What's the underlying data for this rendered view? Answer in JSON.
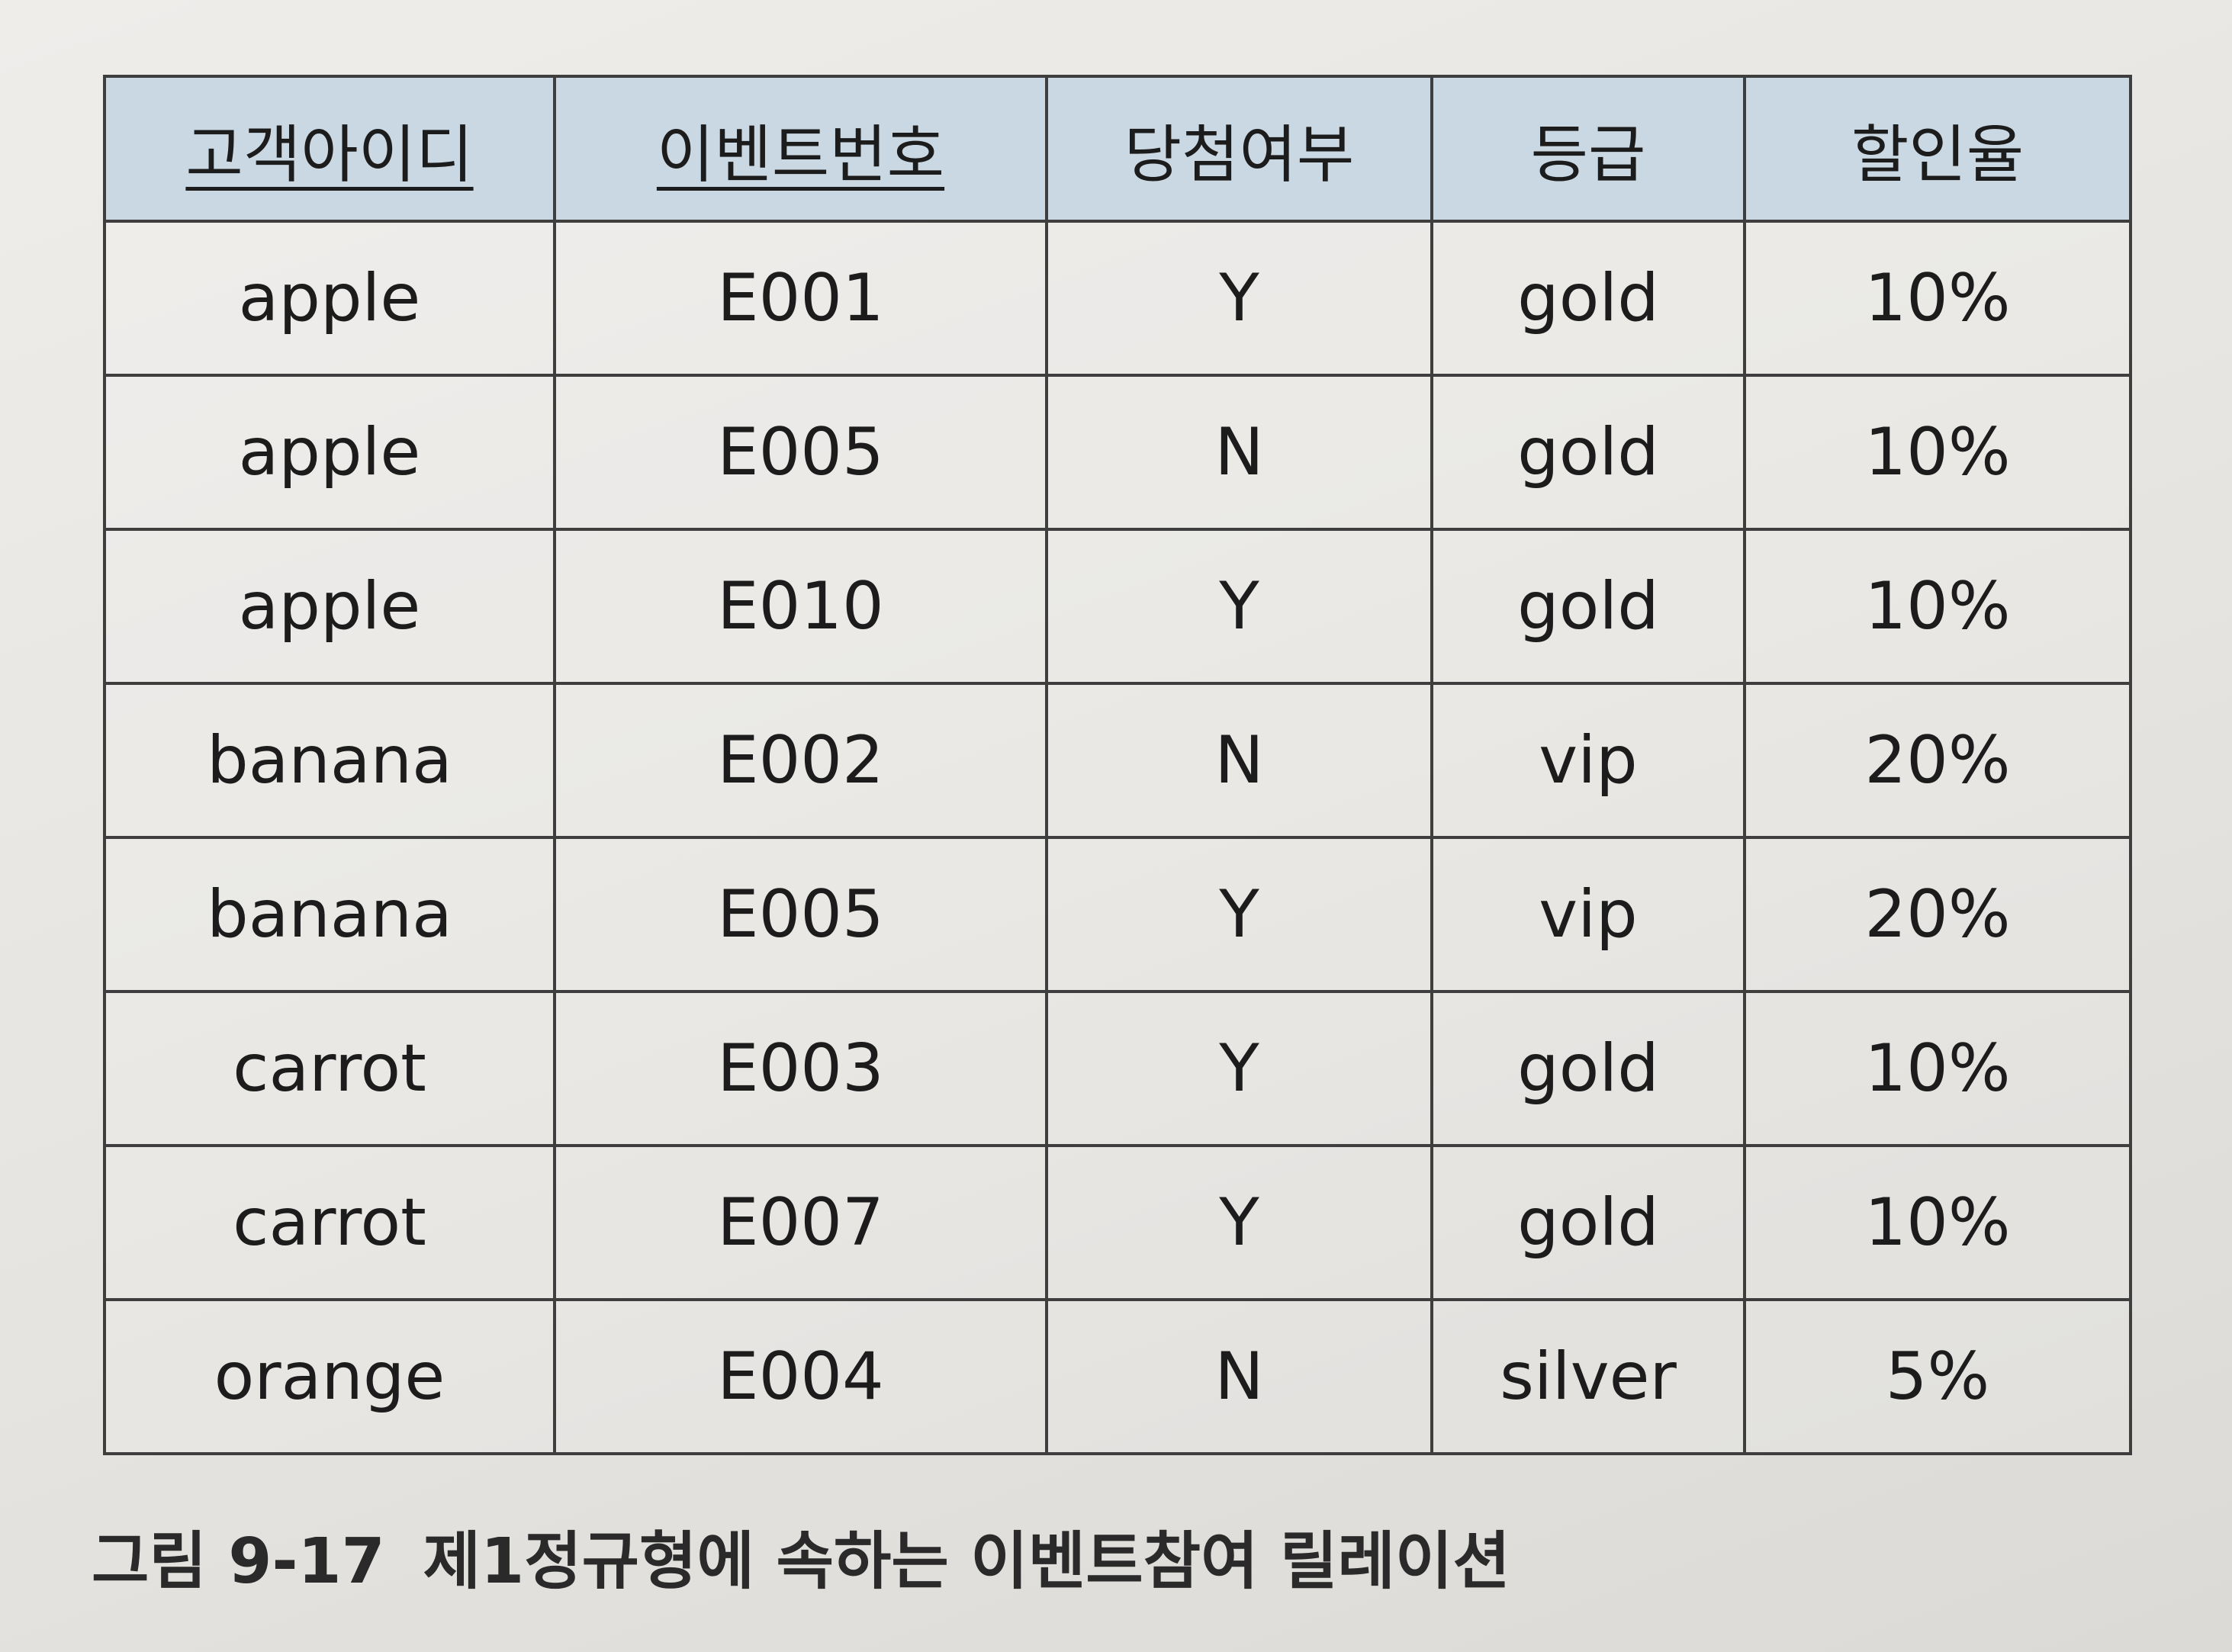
{
  "table": {
    "headers": [
      "고객아이디",
      "이벤트번호",
      "당첨여부",
      "등급",
      "할인율"
    ],
    "rows": [
      [
        "apple",
        "E001",
        "Y",
        "gold",
        "10%"
      ],
      [
        "apple",
        "E005",
        "N",
        "gold",
        "10%"
      ],
      [
        "apple",
        "E010",
        "Y",
        "gold",
        "10%"
      ],
      [
        "banana",
        "E002",
        "N",
        "vip",
        "20%"
      ],
      [
        "banana",
        "E005",
        "Y",
        "vip",
        "20%"
      ],
      [
        "carrot",
        "E003",
        "Y",
        "gold",
        "10%"
      ],
      [
        "carrot",
        "E007",
        "Y",
        "gold",
        "10%"
      ],
      [
        "orange",
        "E004",
        "N",
        "silver",
        "5%"
      ]
    ]
  },
  "caption": {
    "figure_number": "그림 9-17",
    "text": "제1정규형에 속하는 이벤트참여 릴레이션"
  }
}
